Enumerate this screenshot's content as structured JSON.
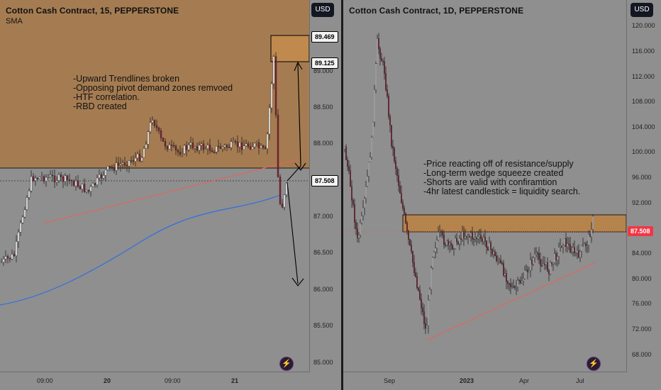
{
  "colors": {
    "zone_fill": "#a57c52",
    "zone_fill_right": "#b5834c",
    "candle_up": "#ffffff",
    "candle_down": "#8a1f33",
    "wick": "#222222",
    "sma_line": "#2f6fe0",
    "trendline": "#e8615c",
    "panel_bg": "#8f8f8f",
    "button_bg": "#131722",
    "accent_red": "#f23645"
  },
  "left_chart": {
    "title": "Cotton Cash Contract, 15, PEPPERSTONE",
    "indicator": "SMA",
    "currency_button": "USD",
    "price_ticks": [
      "89.000",
      "88.500",
      "88.000",
      "87.000",
      "86.500",
      "86.000",
      "85.500",
      "85.000"
    ],
    "price_tags": {
      "zone_top": "89.469",
      "zone_bottom": "89.125",
      "last_price": "87.508"
    },
    "time_labels": [
      {
        "text": "09:00",
        "bold": false
      },
      {
        "text": "20",
        "bold": true
      },
      {
        "text": "09:00",
        "bold": false
      },
      {
        "text": "21",
        "bold": true
      }
    ],
    "notes": [
      "-Upward Trendlines broken",
      "-Opposing pivot demand zones remvoed",
      "-HTF correlation.",
      "-RBD created"
    ],
    "flash_icon": "lightning-bolt-icon"
  },
  "right_chart": {
    "title": "Cotton Cash Contract, 1D, PEPPERSTONE",
    "currency_button": "USD",
    "price_ticks": [
      "120.000",
      "116.000",
      "112.000",
      "108.000",
      "104.000",
      "100.000",
      "96.000",
      "92.000",
      "84.000",
      "80.000",
      "76.000",
      "72.000",
      "68.000"
    ],
    "price_tags": {
      "last_price": "87.508"
    },
    "time_labels": [
      {
        "text": "Sep",
        "bold": false
      },
      {
        "text": "2023",
        "bold": true
      },
      {
        "text": "Apr",
        "bold": false
      },
      {
        "text": "Jul",
        "bold": false
      }
    ],
    "notes": [
      "-Price reacting off of resistance/supply",
      "-Long-term wedge squeeze created",
      "-Shorts are valid with confiramtion",
      "-4hr latest candlestick = liquidity search."
    ],
    "flash_icon": "lightning-bolt-icon"
  }
}
